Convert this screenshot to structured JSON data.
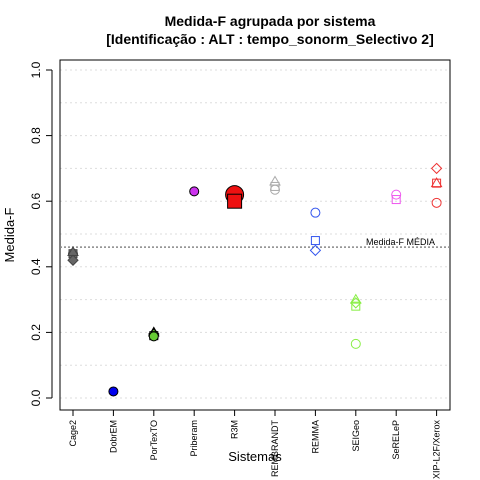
{
  "chart_data": {
    "type": "scatter",
    "title_line1": "Medida-F agrupada por sistema",
    "title_line2": "[Identificação : ALT : tempo_sonorm_Selectivo 2]",
    "xlabel": "Sistemas",
    "ylabel": "Medida-F",
    "ylim": [
      0,
      1
    ],
    "yticks": [
      "0.0",
      "0.2",
      "0.4",
      "0.6",
      "0.8",
      "1.0"
    ],
    "ytick_values": [
      0,
      0.2,
      0.4,
      0.6,
      0.8,
      1.0
    ],
    "grid": "horizontal-dotted",
    "categories": [
      "Cage2",
      "DobrEM",
      "PorTexTO",
      "Priberam",
      "R3M",
      "REMBRANDT",
      "REMMA",
      "SEIGeo",
      "SeRELeP",
      "XIP-L2F/Xerox"
    ],
    "mean_line": {
      "value": 0.46,
      "label": "Medida-F MÉDIA"
    },
    "series": [
      {
        "category": "Cage2",
        "color": "#666666",
        "filled": true,
        "points": [
          {
            "shape": "circle",
            "y": 0.44
          },
          {
            "shape": "square",
            "y": 0.44
          },
          {
            "shape": "triangle",
            "y": 0.445
          },
          {
            "shape": "diamond",
            "y": 0.42
          }
        ]
      },
      {
        "category": "DobrEM",
        "color": "#0000ee",
        "filled": true,
        "points": [
          {
            "shape": "circle",
            "y": 0.02
          }
        ]
      },
      {
        "category": "PorTexTO",
        "color": "#66cc33",
        "filled": true,
        "points": [
          {
            "shape": "triangle",
            "y": 0.2
          },
          {
            "shape": "diamond",
            "y": 0.195
          },
          {
            "shape": "square",
            "y": 0.19
          },
          {
            "shape": "circle",
            "y": 0.188
          }
        ]
      },
      {
        "category": "Priberam",
        "color": "#cc33ee",
        "filled": true,
        "points": [
          {
            "shape": "circle",
            "y": 0.63
          }
        ]
      },
      {
        "category": "R3M",
        "color": "#ee1111",
        "filled": true,
        "points": [
          {
            "shape": "bigcircle",
            "y": 0.62
          },
          {
            "shape": "bigsquare",
            "y": 0.6
          }
        ]
      },
      {
        "category": "REMBRANDT",
        "color": "#aaaaaa",
        "filled": false,
        "points": [
          {
            "shape": "triangle",
            "y": 0.66
          },
          {
            "shape": "square",
            "y": 0.645
          },
          {
            "shape": "circle",
            "y": 0.635
          }
        ]
      },
      {
        "category": "REMMA",
        "color": "#3355ee",
        "filled": false,
        "points": [
          {
            "shape": "circle",
            "y": 0.565
          },
          {
            "shape": "square",
            "y": 0.48
          },
          {
            "shape": "diamond",
            "y": 0.45
          }
        ]
      },
      {
        "category": "SEIGeo",
        "color": "#88ee44",
        "filled": false,
        "points": [
          {
            "shape": "triangle",
            "y": 0.3
          },
          {
            "shape": "diamond",
            "y": 0.29
          },
          {
            "shape": "square",
            "y": 0.28
          },
          {
            "shape": "circle",
            "y": 0.165
          }
        ]
      },
      {
        "category": "SeRELeP",
        "color": "#ee55ee",
        "filled": false,
        "points": [
          {
            "shape": "circle",
            "y": 0.62
          },
          {
            "shape": "square",
            "y": 0.605
          }
        ]
      },
      {
        "category": "XIP-L2F/Xerox",
        "color": "#ee3333",
        "filled": false,
        "points": [
          {
            "shape": "diamond",
            "y": 0.7
          },
          {
            "shape": "square",
            "y": 0.655
          },
          {
            "shape": "triangle",
            "y": 0.655
          },
          {
            "shape": "circle",
            "y": 0.595
          }
        ]
      }
    ]
  }
}
